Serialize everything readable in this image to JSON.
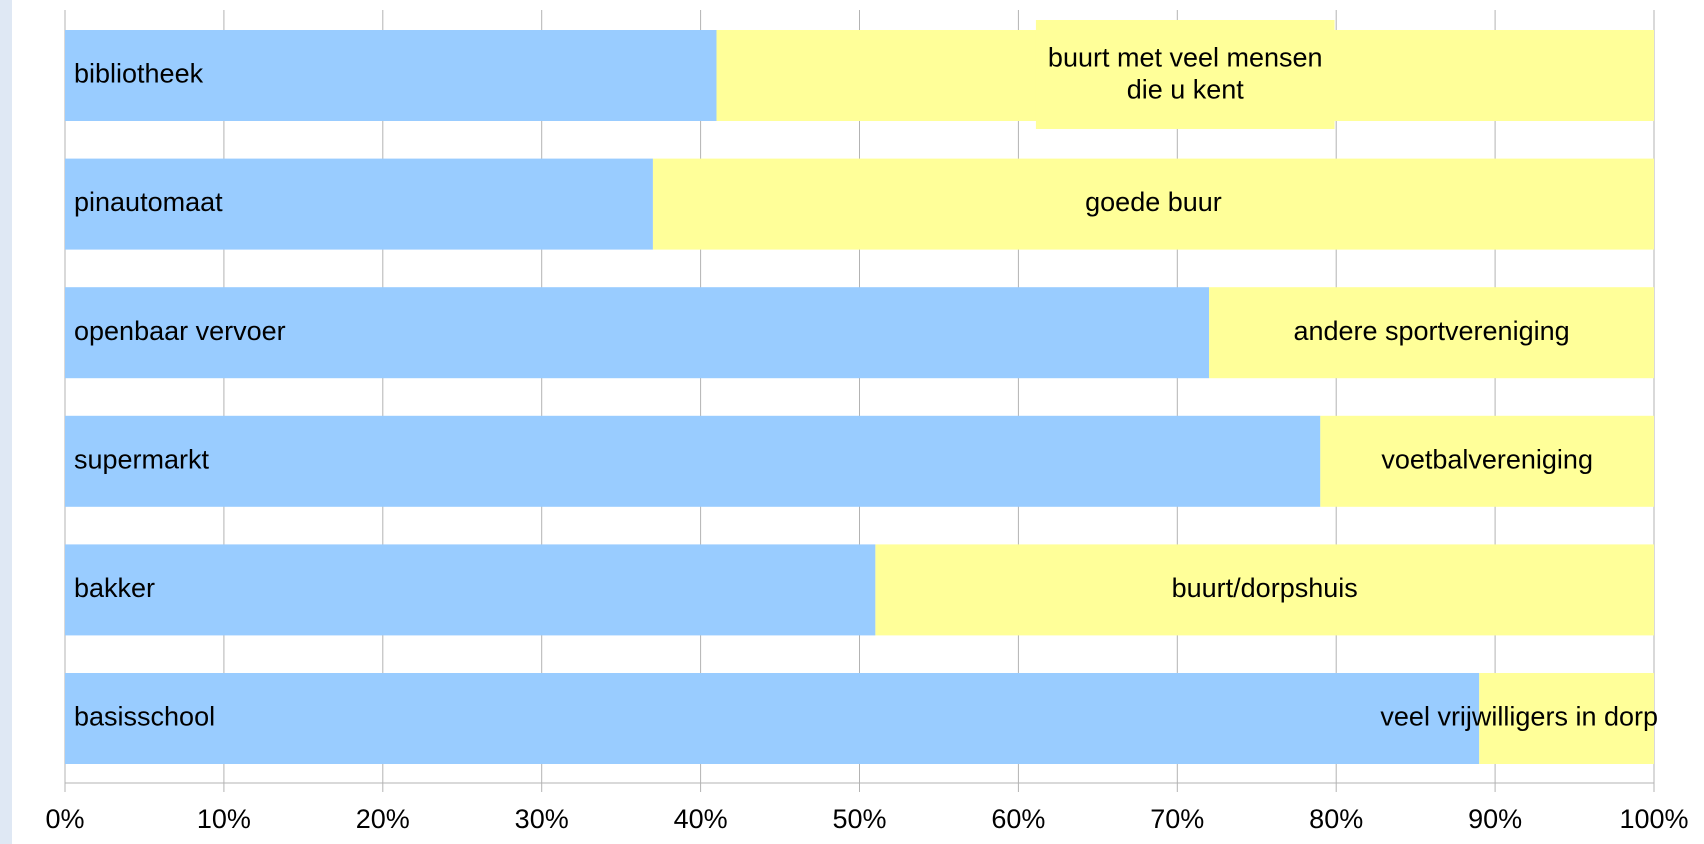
{
  "chart_data": {
    "type": "bar",
    "orientation": "horizontal",
    "stacked": true,
    "bars": [
      {
        "segments": [
          {
            "label": "bibliotheek",
            "value": 41,
            "color": "#99ccff"
          },
          {
            "label": "buurt met veel mensen\ndie u kent",
            "value": 59,
            "color": "#ffff99"
          }
        ]
      },
      {
        "segments": [
          {
            "label": "pinautomaat",
            "value": 37,
            "color": "#99ccff"
          },
          {
            "label": "goede buur",
            "value": 63,
            "color": "#ffff99"
          }
        ]
      },
      {
        "segments": [
          {
            "label": "openbaar vervoer",
            "value": 72,
            "color": "#99ccff"
          },
          {
            "label": "andere sportvereniging",
            "value": 28,
            "color": "#ffff99"
          }
        ]
      },
      {
        "segments": [
          {
            "label": "supermarkt",
            "value": 79,
            "color": "#99ccff"
          },
          {
            "label": "voetbalvereniging",
            "value": 21,
            "color": "#ffff99"
          }
        ]
      },
      {
        "segments": [
          {
            "label": "bakker",
            "value": 51,
            "color": "#99ccff"
          },
          {
            "label": "buurt/dorpshuis",
            "value": 49,
            "color": "#ffff99"
          }
        ]
      },
      {
        "segments": [
          {
            "label": "basisschool",
            "value": 89,
            "color": "#99ccff"
          },
          {
            "label": "veel vrijwilligers in dorp",
            "value": 11,
            "color": "#ffff99"
          }
        ]
      }
    ],
    "xlim": [
      0,
      100
    ],
    "xticks": [
      {
        "value": 0,
        "label": "0%"
      },
      {
        "value": 10,
        "label": "10%"
      },
      {
        "value": 20,
        "label": "20%"
      },
      {
        "value": 30,
        "label": "30%"
      },
      {
        "value": 40,
        "label": "40%"
      },
      {
        "value": 50,
        "label": "50%"
      },
      {
        "value": 60,
        "label": "60%"
      },
      {
        "value": 70,
        "label": "70%"
      },
      {
        "value": 80,
        "label": "80%"
      },
      {
        "value": 90,
        "label": "90%"
      },
      {
        "value": 100,
        "label": "100%"
      }
    ],
    "grid": true
  }
}
